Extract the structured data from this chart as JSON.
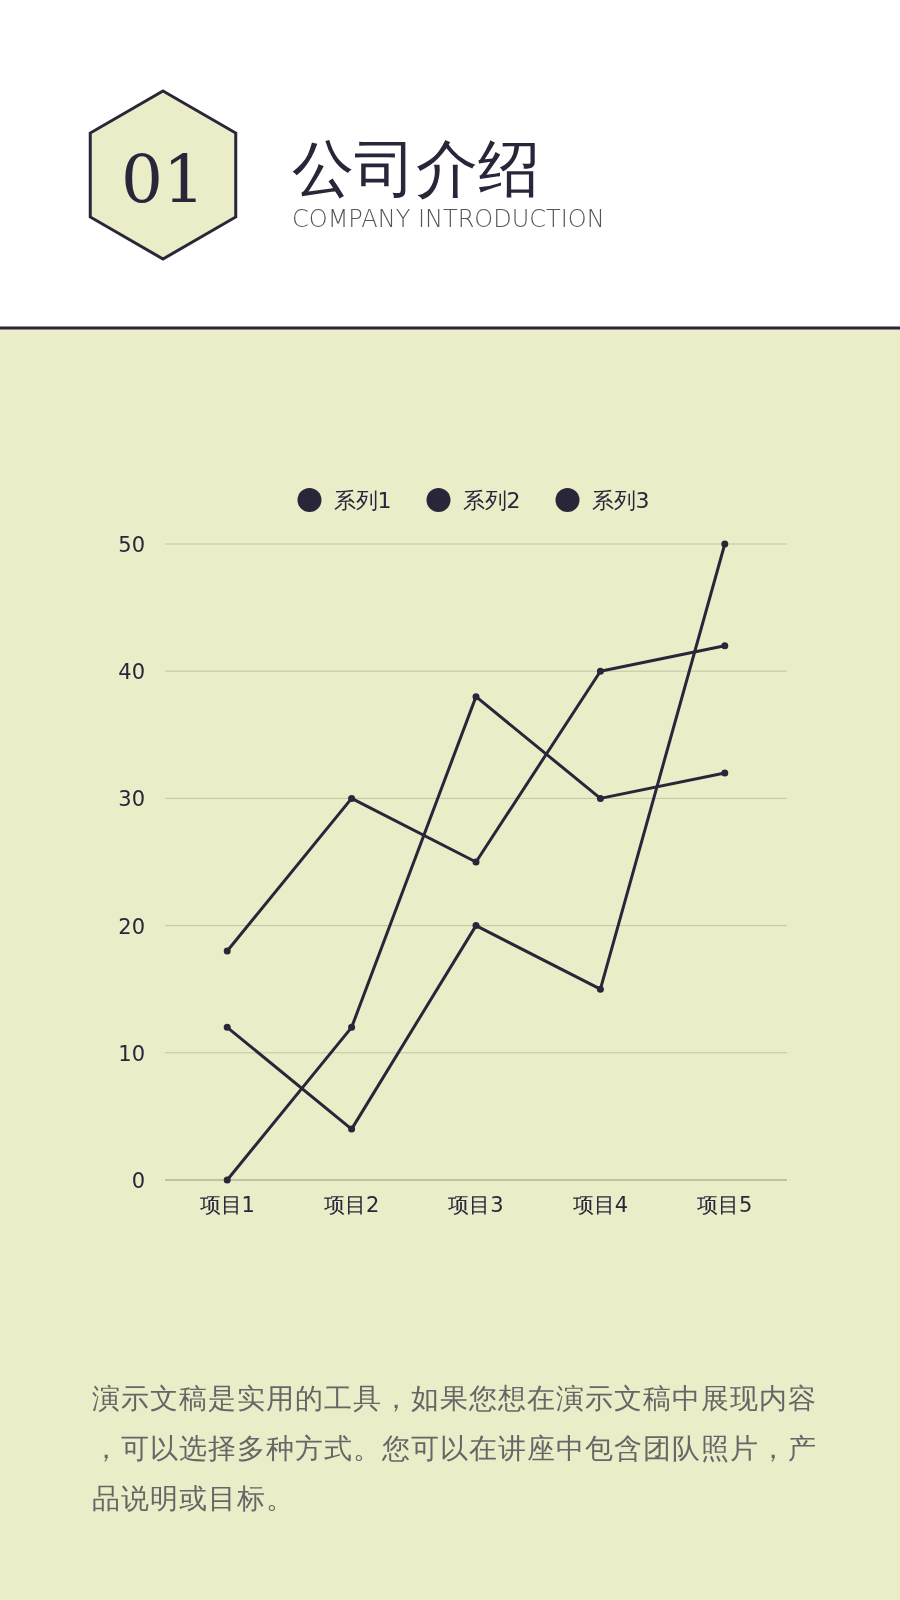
{
  "chart_data": {
    "type": "line",
    "title": "公司介绍",
    "subtitle": "COMPANY INTRODUCTION",
    "annotations": [
      "01",
      "演示文稿是实用的工具，如果您想在演示文稿中展现内容，可以选择多种方式。您可以在讲座中包含团队照片，产品说明或目标。"
    ],
    "categories": [
      "项目1",
      "项目2",
      "项目3",
      "项目4",
      "项目5"
    ],
    "series": [
      {
        "name": "系列1",
        "color": "#29263a",
        "values": [
          18,
          30,
          25,
          40,
          42
        ]
      },
      {
        "name": "系列2",
        "color": "#29263a",
        "values": [
          12,
          4,
          20,
          15,
          50
        ]
      },
      {
        "name": "系列3",
        "color": "#29263a",
        "values": [
          0,
          12,
          38,
          30,
          32
        ]
      }
    ],
    "ylim": [
      0,
      50
    ],
    "yticks": [
      0,
      10,
      20,
      30,
      40,
      50
    ],
    "grid": "y",
    "legend": "top",
    "marker": "circle",
    "line_style": "solid"
  }
}
